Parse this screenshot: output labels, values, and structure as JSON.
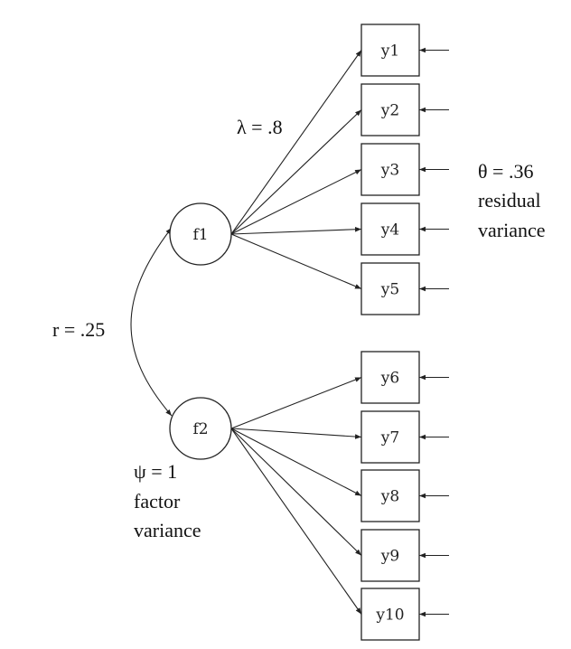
{
  "factors": [
    {
      "id": "f1",
      "label": "f1"
    },
    {
      "id": "f2",
      "label": "f2"
    }
  ],
  "indicators": [
    {
      "id": "y1",
      "label": "y1",
      "factor": "f1"
    },
    {
      "id": "y2",
      "label": "y2",
      "factor": "f1"
    },
    {
      "id": "y3",
      "label": "y3",
      "factor": "f1"
    },
    {
      "id": "y4",
      "label": "y4",
      "factor": "f1"
    },
    {
      "id": "y5",
      "label": "y5",
      "factor": "f1"
    },
    {
      "id": "y6",
      "label": "y6",
      "factor": "f2"
    },
    {
      "id": "y7",
      "label": "y7",
      "factor": "f2"
    },
    {
      "id": "y8",
      "label": "y8",
      "factor": "f2"
    },
    {
      "id": "y9",
      "label": "y9",
      "factor": "f2"
    },
    {
      "id": "y10",
      "label": "y10",
      "factor": "f2"
    }
  ],
  "annotations": {
    "loading": "λ = .8",
    "residual_value": "θ  = .36",
    "residual_line1": "residual",
    "residual_line2": "variance",
    "correlation": "r = .25",
    "factor_var_value": "ψ = 1",
    "factor_var_line1": "factor",
    "factor_var_line2": "variance"
  }
}
